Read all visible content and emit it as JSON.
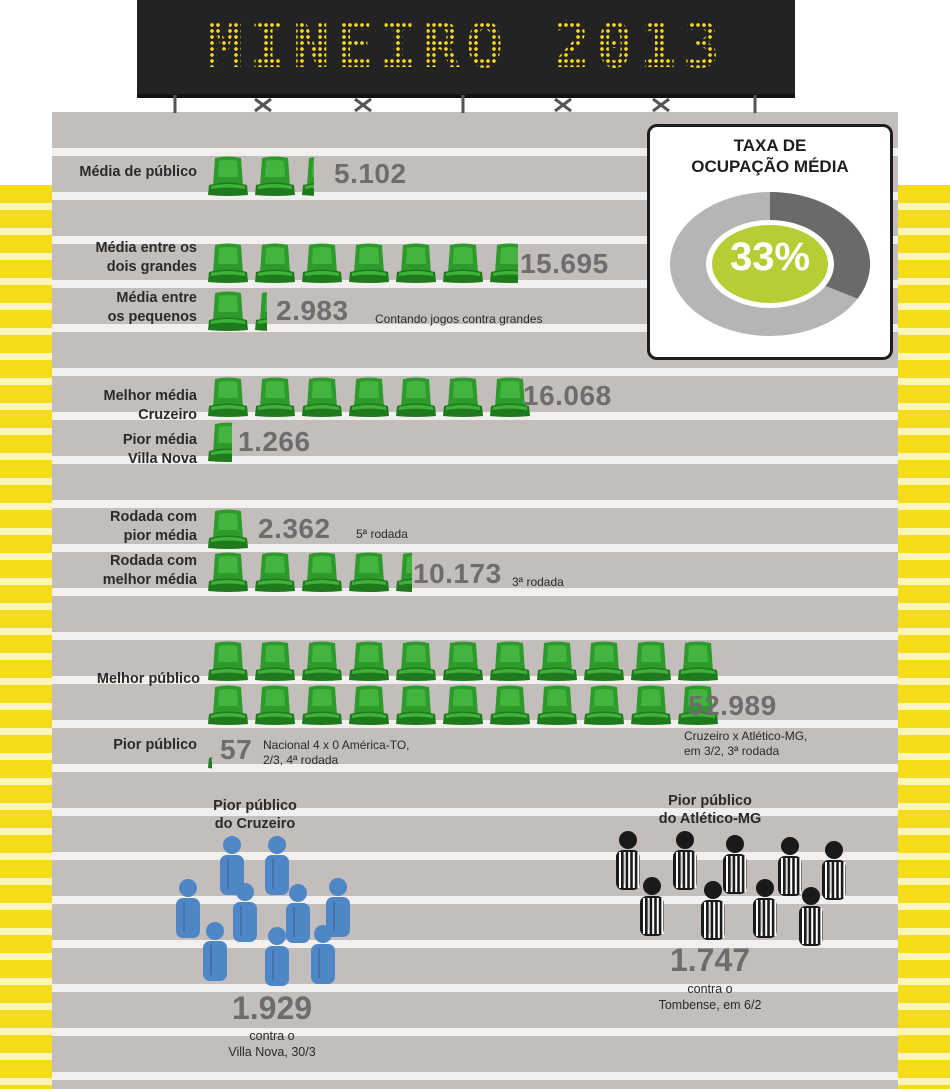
{
  "header": {
    "title": "MINEIRO 2013"
  },
  "occupancy": {
    "title_line1": "TAXA DE",
    "title_line2": "OCUPAÇÃO MÉDIA",
    "value": "33%",
    "fraction": 0.33
  },
  "colors": {
    "seat": "#2f9a2c",
    "accent_yellow": "#f4dc1a",
    "cruzeiro_blue": "#4f86c6",
    "atletico_black": "#1a1a1a",
    "occupancy_green": "#b8cc34"
  },
  "stats": [
    {
      "id": "media-publico",
      "label": "Média de público",
      "value": "5.102",
      "seats": 2.3
    },
    {
      "id": "media-grandes",
      "label_line1": "Média entre os",
      "label_line2": "dois grandes",
      "value": "15.695",
      "seats": 6.7
    },
    {
      "id": "media-pequenos",
      "label_line1": "Média entre",
      "label_line2": "os pequenos",
      "value": "2.983",
      "note": "Contando jogos contra grandes",
      "seats": 1.3
    },
    {
      "id": "melhor-media",
      "label_line1": "Melhor média",
      "label_line2": "Cruzeiro",
      "value": "16.068",
      "seats": 7
    },
    {
      "id": "pior-media",
      "label_line1": "Pior média",
      "label_line2": "Villa Nova",
      "value": "1.266",
      "seats": 0.6
    },
    {
      "id": "rodada-pior",
      "label_line1": "Rodada com",
      "label_line2": "pior média",
      "value": "2.362",
      "note": "5ª rodada",
      "seats": 1
    },
    {
      "id": "rodada-melhor",
      "label_line1": "Rodada com",
      "label_line2": "melhor média",
      "value": "10.173",
      "note": "3ª rodada",
      "seats": 4.4
    },
    {
      "id": "melhor-publico",
      "label": "Melhor público",
      "value": "52.989",
      "note_line1": "Cruzeiro x Atlético-MG,",
      "note_line2": "em 3/2, 3ª rodada",
      "seats": 22
    },
    {
      "id": "pior-publico",
      "label": "Pior público",
      "value": "57",
      "note_line1": "Nacional 4 x 0 América-TO,",
      "note_line2": "2/3, 4ª rodada",
      "seats": 0.1
    }
  ],
  "cruzeiro": {
    "title_line1": "Pior público",
    "title_line2": "do Cruzeiro",
    "value": "1.929",
    "note_line1": "contra o",
    "note_line2": "Villa Nova, 30/3"
  },
  "atletico": {
    "title_line1": "Pior público",
    "title_line2": "do Atlético-MG",
    "value": "1.747",
    "note_line1": "contra o",
    "note_line2": "Tombense, em 6/2"
  }
}
